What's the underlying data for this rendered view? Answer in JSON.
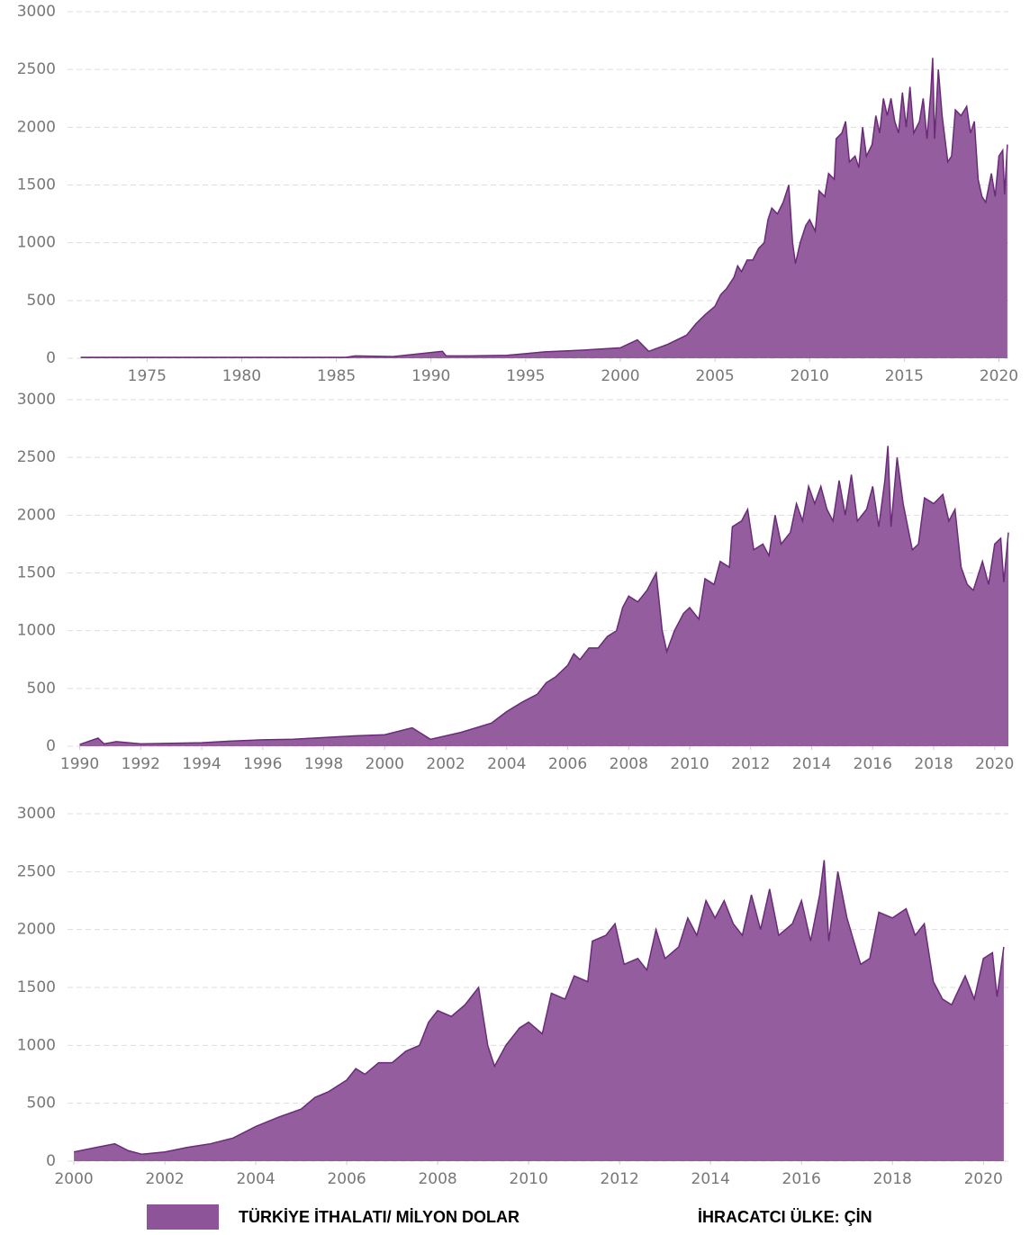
{
  "chart_data": [
    {
      "type": "area",
      "color": "#8e5499",
      "xlim": [
        1970.8,
        2020.5
      ],
      "ylim": [
        0,
        3000
      ],
      "xticks": [
        1975,
        1980,
        1985,
        1990,
        1995,
        2000,
        2005,
        2010,
        2015,
        2020
      ],
      "yticks": [
        0,
        500,
        1000,
        1500,
        2000,
        2500,
        3000
      ],
      "grid": true,
      "x": [
        1971.5,
        1985.5,
        1986,
        1988,
        1990.6,
        1990.8,
        1992,
        1994,
        1995,
        1996,
        1998,
        2000,
        2000.9,
        2001.5,
        2002.5,
        2003.5,
        2004,
        2004.5,
        2005,
        2005.3,
        2005.6,
        2006,
        2006.2,
        2006.4,
        2006.7,
        2007,
        2007.3,
        2007.6,
        2007.8,
        2008,
        2008.3,
        2008.6,
        2008.9,
        2009.1,
        2009.25,
        2009.5,
        2009.8,
        2010,
        2010.3,
        2010.5,
        2010.8,
        2011,
        2011.3,
        2011.4,
        2011.7,
        2011.9,
        2012.1,
        2012.4,
        2012.6,
        2012.8,
        2013,
        2013.3,
        2013.5,
        2013.7,
        2013.9,
        2014.1,
        2014.3,
        2014.5,
        2014.7,
        2014.9,
        2015.1,
        2015.3,
        2015.5,
        2015.8,
        2016,
        2016.2,
        2016.4,
        2016.5,
        2016.6,
        2016.8,
        2017,
        2017.3,
        2017.5,
        2017.7,
        2018,
        2018.3,
        2018.5,
        2018.7,
        2018.9,
        2019.1,
        2019.3,
        2019.6,
        2019.8,
        2020,
        2020.2,
        2020.3,
        2020.45
      ],
      "values": [
        8,
        8,
        20,
        15,
        60,
        20,
        20,
        25,
        40,
        55,
        70,
        90,
        160,
        60,
        120,
        200,
        300,
        380,
        450,
        550,
        600,
        700,
        800,
        750,
        850,
        850,
        950,
        1000,
        1200,
        1300,
        1250,
        1350,
        1500,
        1000,
        820,
        1000,
        1150,
        1200,
        1100,
        1450,
        1400,
        1600,
        1550,
        1900,
        1950,
        2050,
        1700,
        1750,
        1650,
        2000,
        1750,
        1850,
        2100,
        1950,
        2250,
        2100,
        2250,
        2050,
        1950,
        2300,
        2000,
        2350,
        1950,
        2050,
        2250,
        1900,
        2300,
        2600,
        1900,
        2500,
        2100,
        1700,
        1750,
        2150,
        2100,
        2180,
        1950,
        2050,
        1550,
        1400,
        1350,
        1600,
        1400,
        1750,
        1800,
        1420,
        1850
      ]
    },
    {
      "type": "area",
      "color": "#8e5499",
      "xlim": [
        1989.6,
        2020.45
      ],
      "ylim": [
        0,
        3000
      ],
      "xticks": [
        1990,
        1992,
        1994,
        1996,
        1998,
        2000,
        2002,
        2004,
        2006,
        2008,
        2010,
        2012,
        2014,
        2016,
        2018,
        2020
      ],
      "yticks": [
        0,
        500,
        1000,
        1500,
        2000,
        2500,
        3000
      ],
      "grid": true,
      "x": [
        1990,
        1990.6,
        1990.8,
        1991.2,
        1992,
        1993,
        1994,
        1995,
        1996,
        1997,
        1998,
        1999,
        2000,
        2000.9,
        2001.5,
        2002.5,
        2003.5,
        2004,
        2004.5,
        2005,
        2005.3,
        2005.6,
        2006,
        2006.2,
        2006.4,
        2006.7,
        2007,
        2007.3,
        2007.6,
        2007.8,
        2008,
        2008.3,
        2008.6,
        2008.9,
        2009.1,
        2009.25,
        2009.5,
        2009.8,
        2010,
        2010.3,
        2010.5,
        2010.8,
        2011,
        2011.3,
        2011.4,
        2011.7,
        2011.9,
        2012.1,
        2012.4,
        2012.6,
        2012.8,
        2013,
        2013.3,
        2013.5,
        2013.7,
        2013.9,
        2014.1,
        2014.3,
        2014.5,
        2014.7,
        2014.9,
        2015.1,
        2015.3,
        2015.5,
        2015.8,
        2016,
        2016.2,
        2016.4,
        2016.5,
        2016.6,
        2016.8,
        2017,
        2017.3,
        2017.5,
        2017.7,
        2018,
        2018.3,
        2018.5,
        2018.7,
        2018.9,
        2019.1,
        2019.3,
        2019.6,
        2019.8,
        2020,
        2020.2,
        2020.3,
        2020.45
      ],
      "values": [
        15,
        70,
        20,
        40,
        20,
        25,
        30,
        45,
        55,
        60,
        75,
        90,
        100,
        160,
        60,
        120,
        200,
        300,
        380,
        450,
        550,
        600,
        700,
        800,
        750,
        850,
        850,
        950,
        1000,
        1200,
        1300,
        1250,
        1350,
        1500,
        1000,
        820,
        1000,
        1150,
        1200,
        1100,
        1450,
        1400,
        1600,
        1550,
        1900,
        1950,
        2050,
        1700,
        1750,
        1650,
        2000,
        1750,
        1850,
        2100,
        1950,
        2250,
        2100,
        2250,
        2050,
        1950,
        2300,
        2000,
        2350,
        1950,
        2050,
        2250,
        1900,
        2300,
        2600,
        1900,
        2500,
        2100,
        1700,
        1750,
        2150,
        2100,
        2180,
        1950,
        2050,
        1550,
        1400,
        1350,
        1600,
        1400,
        1750,
        1800,
        1420,
        1850
      ]
    },
    {
      "type": "area",
      "xlim": [
        1999.86,
        2020.55
      ],
      "ylim": [
        0,
        3000
      ],
      "xticks": [
        2000,
        2002,
        2004,
        2006,
        2008,
        2010,
        2012,
        2014,
        2016,
        2018,
        2020
      ],
      "yticks": [
        0,
        500,
        1000,
        1500,
        2000,
        2500,
        3000
      ],
      "grid": true,
      "annotation": "İHRACATCI ÜLKE: ÇİN",
      "x": [
        2000,
        2000.5,
        2000.9,
        2001.2,
        2001.5,
        2002,
        2002.5,
        2003,
        2003.5,
        2004,
        2004.5,
        2005,
        2005.3,
        2005.6,
        2006,
        2006.2,
        2006.4,
        2006.7,
        2007,
        2007.3,
        2007.6,
        2007.8,
        2008,
        2008.3,
        2008.6,
        2008.9,
        2009.1,
        2009.25,
        2009.5,
        2009.8,
        2010,
        2010.3,
        2010.5,
        2010.8,
        2011,
        2011.3,
        2011.4,
        2011.7,
        2011.9,
        2012.1,
        2012.4,
        2012.6,
        2012.8,
        2013,
        2013.3,
        2013.5,
        2013.7,
        2013.9,
        2014.1,
        2014.3,
        2014.5,
        2014.7,
        2014.9,
        2015.1,
        2015.3,
        2015.5,
        2015.8,
        2016,
        2016.2,
        2016.4,
        2016.5,
        2016.6,
        2016.8,
        2017,
        2017.3,
        2017.5,
        2017.7,
        2018,
        2018.3,
        2018.5,
        2018.7,
        2018.9,
        2019.1,
        2019.3,
        2019.6,
        2019.8,
        2020,
        2020.2,
        2020.3,
        2020.45
      ],
      "series": [
        {
          "name": "TÜRKİYE İTHALATI/ MİLYON DOLAR",
          "color": "#8e5499",
          "values": [
            80,
            120,
            150,
            90,
            60,
            80,
            120,
            150,
            200,
            300,
            380,
            450,
            550,
            600,
            700,
            800,
            750,
            850,
            850,
            950,
            1000,
            1200,
            1300,
            1250,
            1350,
            1500,
            1000,
            820,
            1000,
            1150,
            1200,
            1100,
            1450,
            1400,
            1600,
            1550,
            1900,
            1950,
            2050,
            1700,
            1750,
            1650,
            2000,
            1750,
            1850,
            2100,
            1950,
            2250,
            2100,
            2250,
            2050,
            1950,
            2300,
            2000,
            2350,
            1950,
            2050,
            2250,
            1900,
            2300,
            2600,
            1900,
            2500,
            2100,
            1700,
            1750,
            2150,
            2100,
            2180,
            1950,
            2050,
            1550,
            1400,
            1350,
            1600,
            1400,
            1750,
            1800,
            1420,
            1850
          ]
        }
      ]
    }
  ]
}
